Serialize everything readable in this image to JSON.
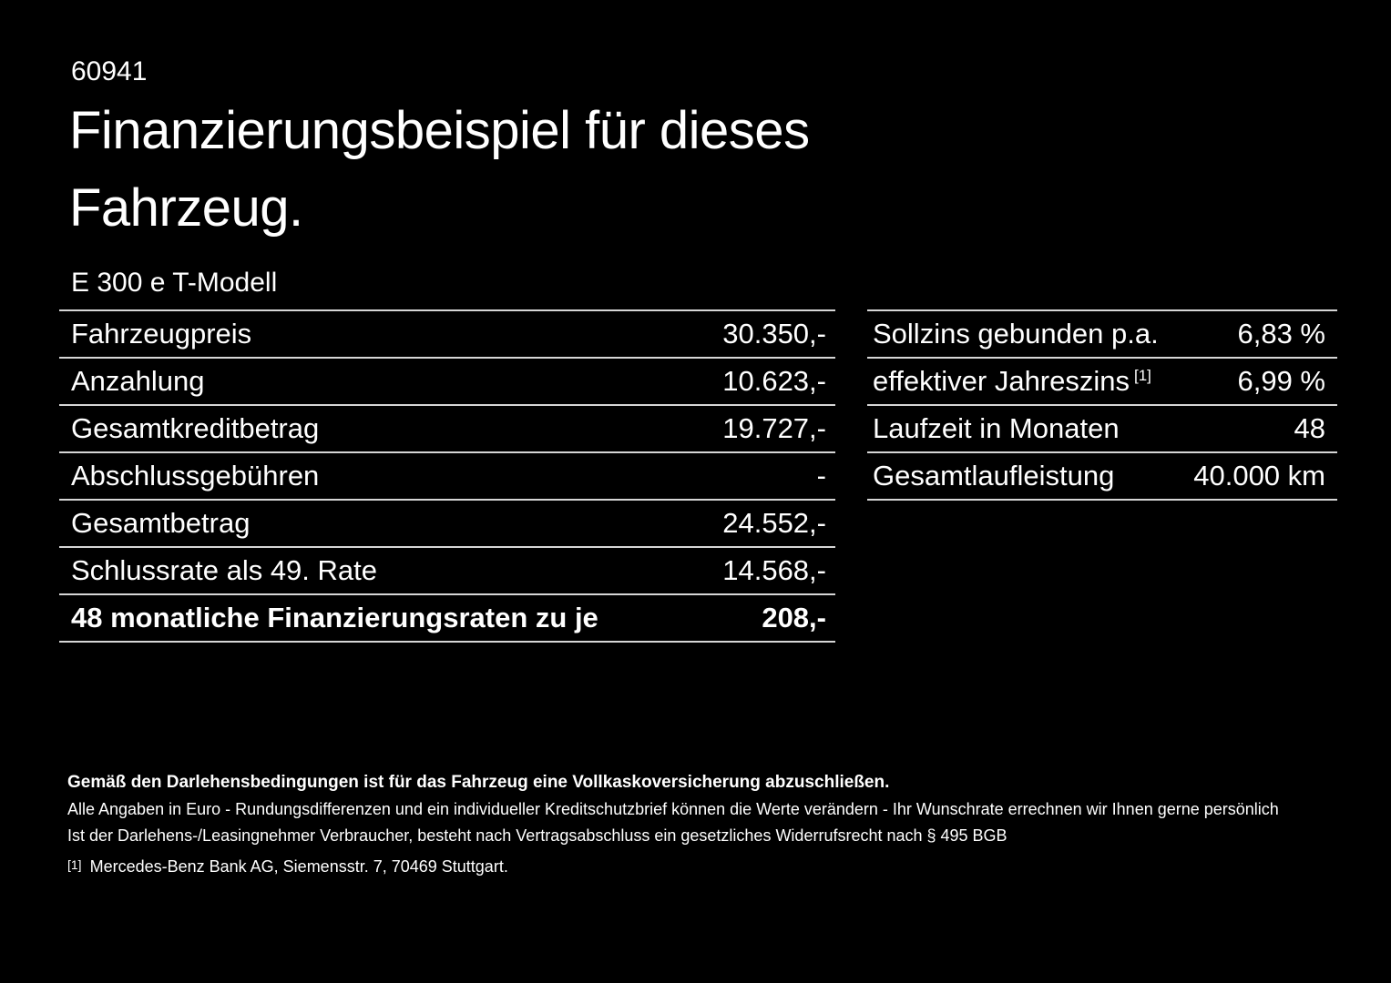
{
  "page": {
    "background_color": "#000000",
    "text_color": "#ffffff",
    "divider_color": "#d6d6d6"
  },
  "header": {
    "ref_number": "60941",
    "title_line1": "Finanzierungsbeispiel für dieses",
    "title_line2": "Fahrzeug.",
    "model": "E 300 e T-Modell"
  },
  "left_table": {
    "rows": [
      {
        "label": "Fahrzeugpreis",
        "value": "30.350,-"
      },
      {
        "label": "Anzahlung",
        "value": "10.623,-"
      },
      {
        "label": "Gesamtkreditbetrag",
        "value": "19.727,-"
      },
      {
        "label": "Abschlussgebühren",
        "value": "-"
      },
      {
        "label": "Gesamtbetrag",
        "value": "24.552,-"
      },
      {
        "label": "Schlussrate als 49. Rate",
        "value": "14.568,-"
      },
      {
        "label": "48 monatliche Finanzierungsraten zu je",
        "value": "208,-"
      }
    ]
  },
  "right_table": {
    "rows": [
      {
        "label": "Sollzins gebunden p.a.",
        "value": "6,83 %"
      },
      {
        "label": "effektiver Jahreszins",
        "sup": "[1]",
        "value": "6,99 %"
      },
      {
        "label": "Laufzeit in Monaten",
        "value": "48"
      },
      {
        "label": "Gesamtlaufleistung",
        "value": "40.000 km"
      }
    ]
  },
  "footer": {
    "bold_note": "Gemäß den Darlehensbedingungen ist für das Fahrzeug eine Vollkaskoversicherung abzuschließen.",
    "note2": "Alle Angaben in Euro - Rundungsdifferenzen und ein individueller Kreditschutzbrief können die Werte verändern - Ihr Wunschrate errechnen wir Ihnen gerne persönlich",
    "note3": "Ist der Darlehens-/Leasingnehmer Verbraucher, besteht nach Vertragsabschluss ein gesetzliches Widerrufsrecht nach § 495 BGB",
    "footnote_marker": "[1]",
    "footnote_text": "Mercedes-Benz Bank AG, Siemensstr. 7, 70469 Stuttgart."
  }
}
